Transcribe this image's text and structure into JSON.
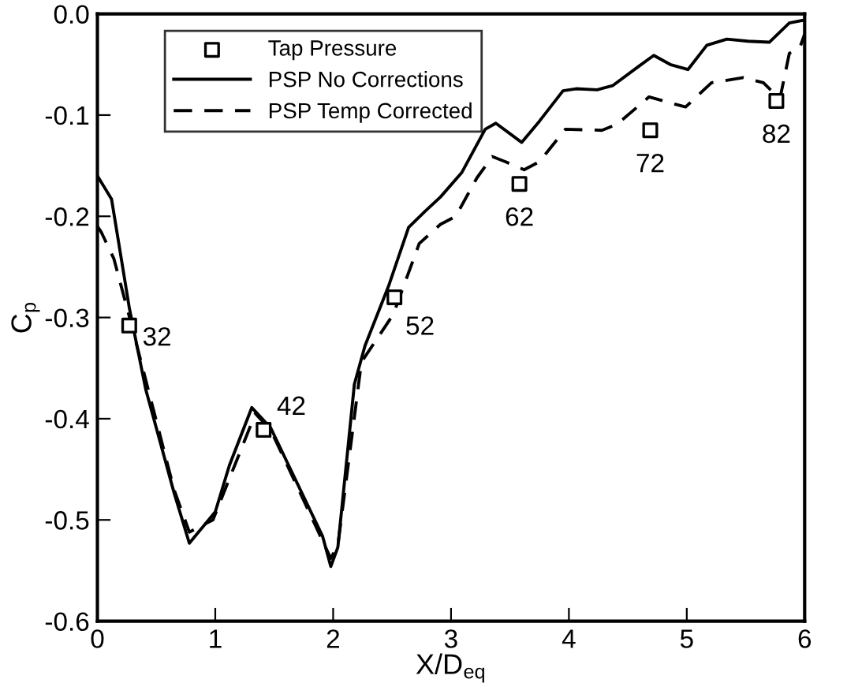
{
  "chart_data": {
    "type": "line",
    "xlabel": "X/D$_{eq}$",
    "ylabel": "C$_{p}$",
    "xlim": [
      0,
      6
    ],
    "ylim": [
      -0.6,
      0.0
    ],
    "xticks": [
      0,
      1,
      2,
      3,
      4,
      5,
      6
    ],
    "yticks": [
      {
        "value": -0.6,
        "label": "-0.6"
      },
      {
        "value": -0.5,
        "label": "-0.5"
      },
      {
        "value": -0.4,
        "label": "-0.4"
      },
      {
        "value": -0.3,
        "label": "-0.3"
      },
      {
        "value": -0.2,
        "label": "-0.2"
      },
      {
        "value": -0.1,
        "label": "-0.1"
      },
      {
        "value": 0.0,
        "label": "0.0"
      }
    ],
    "grid": false,
    "legend": "top left",
    "series": [
      {
        "name": "Tap Pressure",
        "type": "scatter",
        "marker": "square",
        "color": "#000000",
        "x": [
          0.27,
          1.41,
          2.52,
          3.58,
          4.69,
          5.76
        ],
        "values": [
          -0.308,
          -0.411,
          -0.28,
          -0.168,
          -0.115,
          -0.086
        ]
      },
      {
        "name": "PSP No Corrections",
        "line_style": "solid",
        "color": "#000000",
        "x": [
          0.0,
          0.12,
          0.27,
          0.41,
          0.65,
          0.78,
          1.0,
          1.12,
          1.31,
          1.47,
          1.91,
          1.98,
          2.04,
          2.18,
          2.27,
          2.47,
          2.64,
          2.78,
          2.91,
          3.09,
          3.29,
          3.38,
          3.6,
          3.75,
          3.95,
          4.06,
          4.24,
          4.37,
          4.59,
          4.72,
          4.86,
          5.01,
          5.17,
          5.34,
          5.52,
          5.7,
          5.87,
          6.0
        ],
        "values": [
          -0.16,
          -0.183,
          -0.29,
          -0.371,
          -0.473,
          -0.523,
          -0.492,
          -0.446,
          -0.389,
          -0.409,
          -0.516,
          -0.546,
          -0.527,
          -0.366,
          -0.328,
          -0.269,
          -0.211,
          -0.195,
          -0.181,
          -0.157,
          -0.114,
          -0.108,
          -0.127,
          -0.106,
          -0.076,
          -0.074,
          -0.075,
          -0.071,
          -0.052,
          -0.041,
          -0.05,
          -0.055,
          -0.031,
          -0.025,
          -0.027,
          -0.028,
          -0.009,
          -0.006
        ]
      },
      {
        "name": "PSP Temp Corrected",
        "line_style": "dashed",
        "color": "#000000",
        "x": [
          0.0,
          0.03,
          0.14,
          0.3,
          0.65,
          0.78,
          0.98,
          1.34,
          1.47,
          1.98,
          2.04,
          2.24,
          2.51,
          2.73,
          2.91,
          3.04,
          3.22,
          3.35,
          3.46,
          3.62,
          3.75,
          3.97,
          4.28,
          4.41,
          4.68,
          4.83,
          4.99,
          5.21,
          5.48,
          5.65,
          5.79,
          5.87,
          5.96,
          6.0
        ],
        "values": [
          -0.21,
          -0.215,
          -0.242,
          -0.312,
          -0.47,
          -0.512,
          -0.5,
          -0.395,
          -0.411,
          -0.538,
          -0.525,
          -0.344,
          -0.297,
          -0.227,
          -0.208,
          -0.2,
          -0.162,
          -0.141,
          -0.146,
          -0.154,
          -0.146,
          -0.114,
          -0.115,
          -0.109,
          -0.082,
          -0.087,
          -0.092,
          -0.068,
          -0.063,
          -0.068,
          -0.084,
          -0.039,
          -0.033,
          -0.02
        ]
      }
    ],
    "annotations": [
      {
        "text": "32",
        "x": 0.27,
        "y": -0.308
      },
      {
        "text": "42",
        "x": 1.41,
        "y": -0.411
      },
      {
        "text": "52",
        "x": 2.52,
        "y": -0.28
      },
      {
        "text": "62",
        "x": 3.58,
        "y": -0.168
      },
      {
        "text": "72",
        "x": 4.69,
        "y": -0.115
      },
      {
        "text": "82",
        "x": 5.76,
        "y": -0.086
      }
    ]
  }
}
